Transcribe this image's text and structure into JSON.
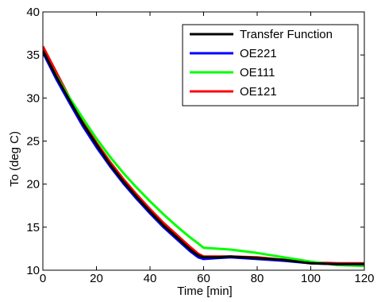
{
  "chart_data": {
    "type": "line",
    "title": "",
    "xlabel": "Time [min]",
    "ylabel": "To (deg C)",
    "xlim": [
      0,
      120
    ],
    "ylim": [
      10,
      40
    ],
    "xticks": [
      0,
      20,
      40,
      60,
      80,
      100,
      120
    ],
    "yticks": [
      10,
      15,
      20,
      25,
      30,
      35,
      40
    ],
    "grid": false,
    "legend_position": "top-right",
    "series": [
      {
        "name": "Transfer Function",
        "color": "#000000",
        "x": [
          0,
          5,
          10,
          15,
          20,
          25,
          30,
          35,
          40,
          45,
          50,
          55,
          58,
          60,
          65,
          70,
          80,
          90,
          100,
          110,
          120
        ],
        "y": [
          35.5,
          32.5,
          29.7,
          27.0,
          24.6,
          22.3,
          20.3,
          18.5,
          16.8,
          15.2,
          13.8,
          12.4,
          11.7,
          11.5,
          11.5,
          11.6,
          11.4,
          11.2,
          10.8,
          10.7,
          10.7
        ]
      },
      {
        "name": "OE221",
        "color": "#0000ff",
        "x": [
          0,
          5,
          10,
          15,
          20,
          25,
          30,
          35,
          40,
          45,
          50,
          55,
          58,
          60,
          65,
          70,
          80,
          90,
          100,
          110,
          120
        ],
        "y": [
          35.3,
          32.2,
          29.4,
          26.7,
          24.3,
          22.1,
          20.1,
          18.3,
          16.6,
          15.0,
          13.6,
          12.2,
          11.5,
          11.3,
          11.4,
          11.5,
          11.3,
          11.1,
          10.8,
          10.7,
          10.7
        ]
      },
      {
        "name": "OE111",
        "color": "#00ff00",
        "x": [
          0,
          5,
          10,
          15,
          20,
          25,
          30,
          35,
          40,
          45,
          50,
          55,
          58,
          60,
          65,
          70,
          80,
          90,
          100,
          110,
          120
        ],
        "y": [
          35.3,
          32.6,
          30.0,
          27.6,
          25.3,
          23.2,
          21.3,
          19.6,
          18.0,
          16.5,
          15.1,
          13.8,
          13.1,
          12.6,
          12.5,
          12.4,
          12.0,
          11.5,
          11.0,
          10.6,
          10.5
        ]
      },
      {
        "name": "OE121",
        "color": "#ff0000",
        "x": [
          0,
          5,
          10,
          15,
          20,
          25,
          30,
          35,
          40,
          45,
          50,
          55,
          58,
          60,
          65,
          70,
          80,
          90,
          100,
          110,
          120
        ],
        "y": [
          36.0,
          33.0,
          30.0,
          27.2,
          24.8,
          22.6,
          20.6,
          18.8,
          17.1,
          15.5,
          14.1,
          12.7,
          11.9,
          11.6,
          11.6,
          11.6,
          11.5,
          11.2,
          10.9,
          10.8,
          10.8
        ]
      }
    ]
  }
}
